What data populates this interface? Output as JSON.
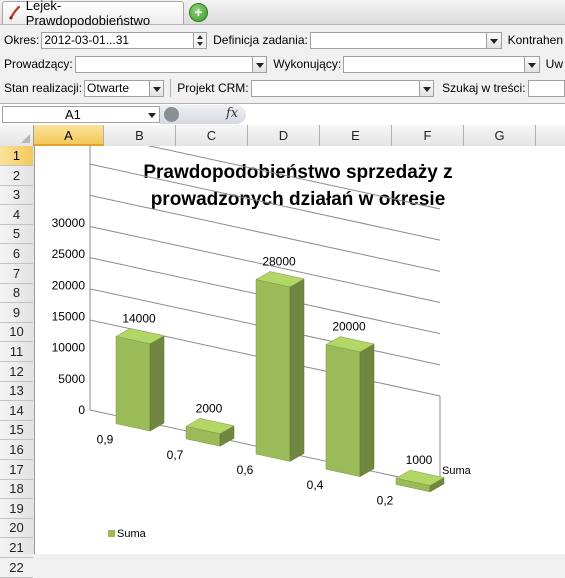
{
  "tab": {
    "title": "Lejek-Prawdopodobieństwo",
    "add_label": "+"
  },
  "filters": {
    "okres_label": "Okres:",
    "okres_value": "2012-03-01...31",
    "definicja_label": "Definicja zadania:",
    "definicja_value": "",
    "kontrahent_label": "Kontrahen",
    "prowadzacy_label": "Prowadzący:",
    "prowadzacy_value": "",
    "wykonujacy_label": "Wykonujący:",
    "wykonujacy_value": "",
    "uw_label": "Uw",
    "stan_label": "Stan realizacji:",
    "stan_value": "Otwarte",
    "projekt_label": "Projekt CRM:",
    "projekt_value": "",
    "szukaj_label": "Szukaj w treści:",
    "szukaj_value": ""
  },
  "formula_bar": {
    "name_box": "A1",
    "fx_label": "fx",
    "formula": ""
  },
  "columns": [
    "A",
    "B",
    "C",
    "D",
    "E",
    "F",
    "G"
  ],
  "selected_column": "A",
  "rows": [
    "1",
    "2",
    "3",
    "4",
    "5",
    "6",
    "7",
    "8",
    "9",
    "10",
    "11",
    "12",
    "13",
    "14",
    "15",
    "16",
    "17",
    "18",
    "19",
    "20",
    "21",
    "22"
  ],
  "selected_row": "1",
  "chart_data": {
    "type": "bar",
    "title": "Prawdopodobieństwo sprzedaży z prowadzonych działań w okresie",
    "title_lines": [
      "Prawdopodobieństwo sprzedaży z",
      "prowadzonych działań w okresie"
    ],
    "categories": [
      "0,9",
      "0,7",
      "0,6",
      "0,4",
      "0,2"
    ],
    "series": [
      {
        "name": "Suma",
        "values": [
          14000,
          2000,
          28000,
          20000,
          1000
        ]
      }
    ],
    "data_labels": [
      "14000",
      "2000",
      "28000",
      "20000",
      "1000"
    ],
    "yticks": [
      "0",
      "5000",
      "10000",
      "15000",
      "20000",
      "25000",
      "30000"
    ],
    "ylim": [
      0,
      30000
    ],
    "depth_axis_label": "Suma",
    "grid": true,
    "legend": "bottom-left",
    "legend_label": "Suma",
    "bar_color": "#9bbb59"
  }
}
